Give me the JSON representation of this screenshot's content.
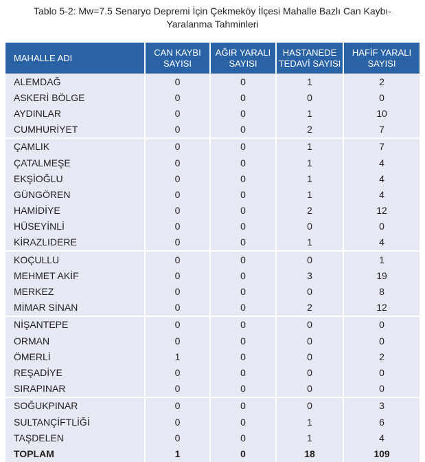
{
  "caption": {
    "line1": "Tablo 5-2: Mw=7.5 Senaryo Depremi İçin Çekmeköy İlçesi Mahalle Bazlı Can Kaybı-",
    "line2": "Yaralanma Tahminleri"
  },
  "headers": {
    "mahalle": "MAHALLE ADI",
    "can_kaybi_1": "CAN KAYBI",
    "can_kaybi_2": "SAYISI",
    "agir_1": "AĞIR YARALI",
    "agir_2": "SAYISI",
    "hastane_1": "HASTANEDE",
    "hastane_2": "TEDAVİ SAYISI",
    "hafif_1": "HAFİF YARALI",
    "hafif_2": "SAYISI"
  },
  "rows": [
    [
      "ALEMDAĞ",
      "0",
      "0",
      "1",
      "2"
    ],
    [
      "ASKERİ BÖLGE",
      "0",
      "0",
      "0",
      "0"
    ],
    [
      "AYDINLAR",
      "0",
      "0",
      "1",
      "10"
    ],
    [
      "CUMHURİYET",
      "0",
      "0",
      "2",
      "7"
    ],
    [
      "ÇAMLIK",
      "0",
      "0",
      "1",
      "7"
    ],
    [
      "ÇATALMEŞE",
      "0",
      "0",
      "1",
      "4"
    ],
    [
      "EKŞİOĞLU",
      "0",
      "0",
      "1",
      "4"
    ],
    [
      "GÜNGÖREN",
      "0",
      "0",
      "1",
      "4"
    ],
    [
      "HAMİDİYE",
      "0",
      "0",
      "2",
      "12"
    ],
    [
      "HÜSEYİNLİ",
      "0",
      "0",
      "0",
      "0"
    ],
    [
      "KİRAZLIDERE",
      "0",
      "0",
      "1",
      "4"
    ],
    [
      "KOÇULLU",
      "0",
      "0",
      "0",
      "1"
    ],
    [
      "MEHMET AKİF",
      "0",
      "0",
      "3",
      "19"
    ],
    [
      "MERKEZ",
      "0",
      "0",
      "0",
      "8"
    ],
    [
      "MİMAR SİNAN",
      "0",
      "0",
      "2",
      "12"
    ],
    [
      "NİŞANTEPE",
      "0",
      "0",
      "0",
      "0"
    ],
    [
      "ORMAN",
      "0",
      "0",
      "0",
      "0"
    ],
    [
      "ÖMERLİ",
      "1",
      "0",
      "0",
      "2"
    ],
    [
      "REŞADİYE",
      "0",
      "0",
      "0",
      "0"
    ],
    [
      "SIRAPINAR",
      "0",
      "0",
      "0",
      "0"
    ],
    [
      "SOĞUKPINAR",
      "0",
      "0",
      "0",
      "3"
    ],
    [
      "SULTANÇİFTLİĞİ",
      "0",
      "0",
      "1",
      "6"
    ],
    [
      "TAŞDELEN",
      "0",
      "0",
      "1",
      "4"
    ]
  ],
  "total": [
    "TOPLAM",
    "1",
    "0",
    "18",
    "109"
  ],
  "colors": {
    "header_bg": "#2a62a6",
    "row_bg": "#e6e9f3"
  }
}
